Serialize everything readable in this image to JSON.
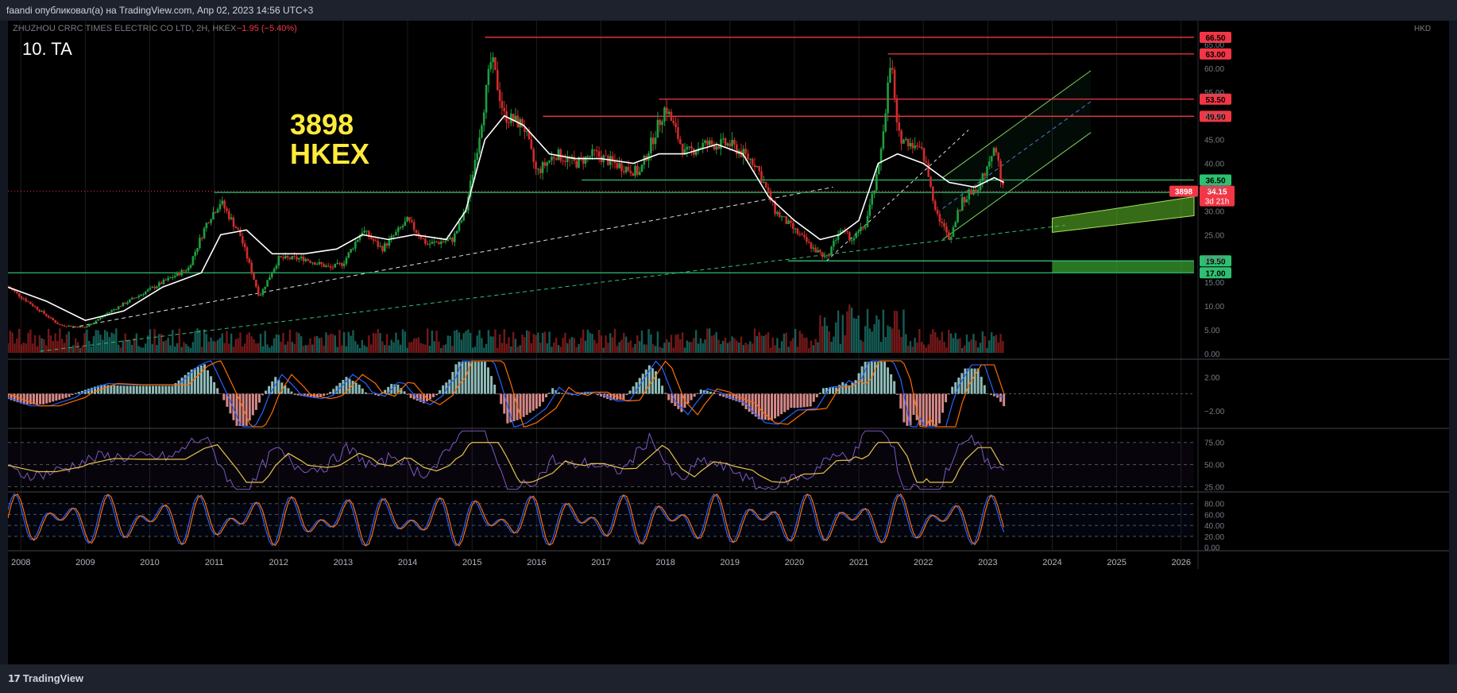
{
  "header": {
    "publisher_text": "faandi опубликовал(а) на TradingView.com, Апр 02, 2023 14:56 UTC+3"
  },
  "symbol_line": {
    "name": "ZHUZHOU CRRC TIMES ELECTRIC CO LTD, 2H, HKEX",
    "change": "−1.95 (−5.40%)"
  },
  "annotations": {
    "label_ta": "10. TA",
    "ticker": "3898",
    "exchange": "HKEX"
  },
  "footer": {
    "brand": "TradingView"
  },
  "colors": {
    "bg": "#000000",
    "grid": "#1c1c1c",
    "up": "#26a69a",
    "candle_up": "#1f9e3f",
    "candle_down": "#d12b2b",
    "resistance": "#f23645",
    "support": "#2fbf71",
    "ma": "#ffffff",
    "rsi": "#7e57c2",
    "rsi_ma": "#e6c34a",
    "macd": "#2962ff",
    "signal": "#ff6d00"
  },
  "chart_data": [
    {
      "type": "line",
      "pane": "price",
      "currency": "HKD",
      "y_axis_labels": [
        "0.00",
        "5.00",
        "10.00",
        "15.00",
        "20.00",
        "25.00",
        "30.00",
        "35.00",
        "40.00",
        "45.00",
        "50.00",
        "55.00",
        "60.00",
        "65.00"
      ],
      "y_axis_values": [
        0,
        5,
        10,
        15,
        20,
        25,
        30,
        35,
        40,
        45,
        50,
        55,
        60,
        65
      ],
      "x_axis_labels": [
        "2008",
        "2009",
        "2010",
        "2011",
        "2012",
        "2013",
        "2014",
        "2015",
        "2016",
        "2017",
        "2018",
        "2019",
        "2020",
        "2021",
        "2022",
        "2023",
        "2024",
        "2025",
        "2026"
      ],
      "x_range": [
        2007.8,
        2026.2
      ],
      "ylim": [
        -1,
        70
      ],
      "price_series": {
        "x": [
          2007.8,
          2008.2,
          2008.6,
          2009.0,
          2009.4,
          2009.8,
          2010.2,
          2010.6,
          2010.9,
          2011.1,
          2011.4,
          2011.7,
          2012.0,
          2012.4,
          2012.8,
          2013.0,
          2013.3,
          2013.6,
          2014.0,
          2014.3,
          2014.7,
          2014.9,
          2015.1,
          2015.3,
          2015.5,
          2015.8,
          2016.0,
          2016.3,
          2016.6,
          2016.9,
          2017.2,
          2017.6,
          2018.0,
          2018.3,
          2018.6,
          2019.0,
          2019.4,
          2019.7,
          2020.0,
          2020.3,
          2020.5,
          2020.7,
          2020.9,
          2021.1,
          2021.3,
          2021.5,
          2021.6,
          2021.8,
          2022.0,
          2022.2,
          2022.4,
          2022.6,
          2022.9,
          2023.1,
          2023.25
        ],
        "y": [
          14,
          10,
          6,
          5.5,
          9,
          12,
          15,
          18,
          28,
          32,
          25,
          12,
          20,
          20,
          18,
          19,
          26,
          22,
          28,
          23,
          24,
          30,
          45,
          62,
          50,
          48,
          38,
          42,
          40,
          42,
          40,
          38,
          52,
          42,
          44,
          44,
          40,
          30,
          26,
          22,
          20,
          26,
          24,
          27,
          38,
          62,
          46,
          44,
          42,
          30,
          24,
          32,
          36,
          44,
          34.15
        ]
      },
      "ma_series": {
        "x": [
          2007.8,
          2008.4,
          2009.0,
          2009.6,
          2010.2,
          2010.8,
          2011.1,
          2011.5,
          2011.9,
          2012.4,
          2012.9,
          2013.3,
          2013.7,
          2014.1,
          2014.6,
          2014.9,
          2015.2,
          2015.5,
          2015.8,
          2016.2,
          2016.6,
          2017.0,
          2017.5,
          2017.9,
          2018.3,
          2018.8,
          2019.2,
          2019.6,
          2020.0,
          2020.4,
          2020.7,
          2021.0,
          2021.3,
          2021.6,
          2022.0,
          2022.4,
          2022.8,
          2023.1,
          2023.25
        ],
        "y": [
          14,
          11,
          7,
          9,
          14,
          17,
          25,
          26,
          21,
          21,
          22,
          25,
          24,
          25,
          24,
          30,
          45,
          50,
          48,
          42,
          41,
          41,
          40,
          42,
          42,
          44,
          42,
          33,
          28,
          24,
          25,
          28,
          40,
          42,
          40,
          36,
          35,
          37,
          36
        ]
      },
      "horizontal_levels": [
        {
          "value": 66.5,
          "label": "66.50",
          "kind": "resistance",
          "x_start": 2015.2
        },
        {
          "value": 63.0,
          "label": "63.00",
          "kind": "resistance",
          "x_start": 2021.45
        },
        {
          "value": 53.5,
          "label": "53.50",
          "kind": "resistance",
          "x_start": 2017.9
        },
        {
          "value": 49.9,
          "label": "49.90",
          "kind": "resistance",
          "x_start": 2016.1
        },
        {
          "value": 36.5,
          "label": "36.50",
          "kind": "support",
          "x_start": 2016.7
        },
        {
          "value": 33.9,
          "label": "33.90",
          "kind": "support",
          "x_start": 2011.0
        },
        {
          "value": 19.5,
          "label": "19.50",
          "kind": "support",
          "x_start": 2019.9
        },
        {
          "value": 17.0,
          "label": "17.00",
          "kind": "support",
          "x_start": 2007.8
        }
      ],
      "current_price": {
        "value": 34.15,
        "label": "34.15",
        "ticker": "3898",
        "countdown": "3d 21h"
      },
      "volume_bars_note": "volume histogram along bottom of price pane"
    },
    {
      "type": "bar",
      "pane": "macd",
      "y_axis_labels": [
        "2.00",
        "−2.00"
      ],
      "y_axis_values": [
        2,
        -2
      ],
      "ylim": [
        -4,
        4
      ]
    },
    {
      "type": "line",
      "pane": "rsi",
      "y_axis_labels": [
        "75.00",
        "50.00",
        "25.00"
      ],
      "y_axis_values": [
        75,
        50,
        25
      ],
      "ylim": [
        20,
        90
      ]
    },
    {
      "type": "line",
      "pane": "stoch_rsi",
      "y_axis_labels": [
        "80.00",
        "60.00",
        "40.00",
        "20.00",
        "0.00"
      ],
      "y_axis_values": [
        80,
        60,
        40,
        20,
        0
      ],
      "ylim": [
        -5,
        100
      ]
    }
  ]
}
